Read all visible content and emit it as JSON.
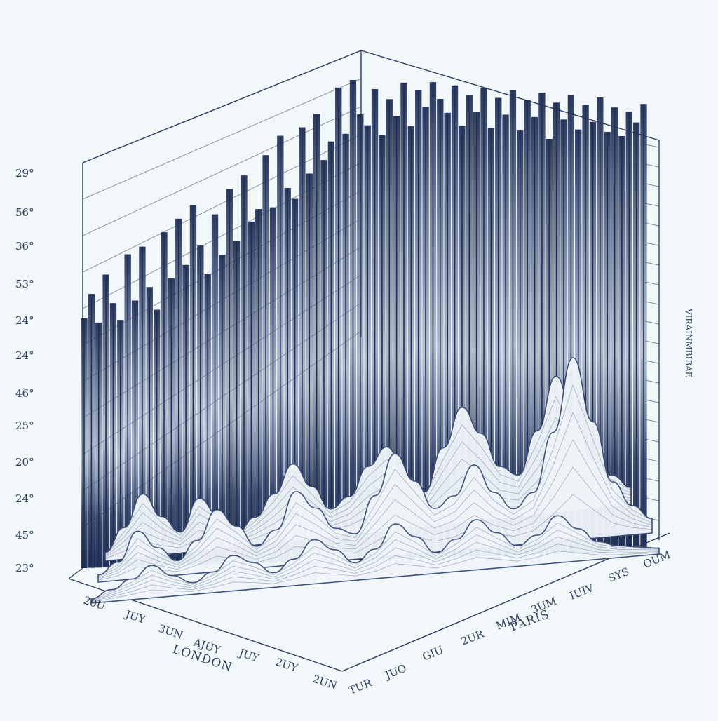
{
  "colors": {
    "background": "#f2f8fa",
    "ink": "#1f2f55",
    "wave_fill": "#eef4f8",
    "wave_line": "#3a4c75"
  },
  "chart_data": {
    "type": "area",
    "title": "",
    "y_tick_labels": [
      "29°",
      "56°",
      "36°",
      "53°",
      "24°",
      "24°",
      "46°",
      "25°",
      "20°",
      "24°",
      "45°",
      "23°"
    ],
    "left_axis_tick_labels": [
      "20U",
      "JUY",
      "3UN",
      "AJUY",
      "JUY",
      "2UY",
      "2UN"
    ],
    "right_axis_tick_labels": [
      "TUR",
      "JUO",
      "GIU",
      "2UR",
      "MIM",
      "3UM",
      "IUIV",
      "SYS",
      "OUM"
    ],
    "left_axis_title": "LONDON",
    "right_axis_title": "PARIS",
    "side_label": "VIRAINMBIBAE",
    "back_series": {
      "name": "",
      "values": [
        30,
        38,
        28,
        44,
        34,
        28,
        50,
        34,
        52,
        38,
        30,
        56,
        40,
        60,
        44,
        64,
        50,
        40,
        60,
        46,
        68,
        50,
        72,
        56,
        60,
        78,
        60,
        84,
        66,
        62,
        86,
        70,
        90,
        74,
        80,
        98,
        82,
        100,
        88,
        84,
        96,
        80,
        92,
        86,
        97,
        82,
        94,
        88,
        96,
        90,
        85,
        94,
        80,
        90,
        84,
        92,
        78,
        88,
        82,
        90,
        76,
        86,
        80,
        88,
        72,
        84,
        78,
        86,
        74,
        82,
        76,
        84,
        72,
        80,
        70,
        78,
        74,
        80
      ]
    },
    "front_series": [
      {
        "name": "",
        "values": [
          5,
          18,
          36,
          22,
          12,
          30,
          20,
          8,
          16,
          28,
          44,
          30,
          16,
          22,
          38,
          48,
          30,
          20,
          44,
          66,
          50,
          30,
          24,
          48,
          78,
          52,
          28,
          18,
          10
        ]
      },
      {
        "name": "",
        "values": [
          4,
          10,
          26,
          16,
          8,
          18,
          34,
          24,
          12,
          20,
          40,
          30,
          18,
          14,
          34,
          56,
          40,
          24,
          30,
          46,
          30,
          20,
          28,
          60,
          100,
          64,
          30,
          16,
          8
        ]
      },
      {
        "name": "",
        "values": [
          3,
          8,
          14,
          22,
          14,
          8,
          14,
          24,
          18,
          10,
          18,
          30,
          22,
          12,
          20,
          36,
          26,
          14,
          22,
          34,
          24,
          14,
          20,
          32,
          22,
          12,
          8,
          6,
          4
        ]
      }
    ]
  }
}
